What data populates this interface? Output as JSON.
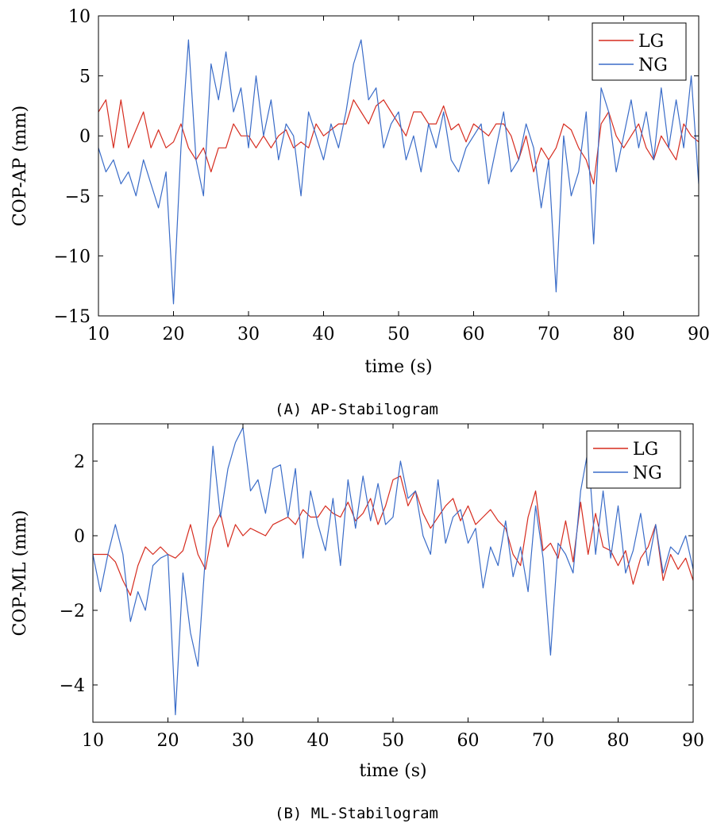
{
  "chart_data": [
    {
      "type": "line",
      "caption": "(A) AP-Stabilogram",
      "xlabel": "time (s)",
      "ylabel": "COP-AP (mm)",
      "xlim": [
        10,
        90
      ],
      "ylim": [
        -15,
        10
      ],
      "xticks": [
        10,
        20,
        30,
        40,
        50,
        60,
        70,
        80,
        90
      ],
      "yticks": [
        -15,
        -10,
        -5,
        0,
        5,
        10
      ],
      "grid": false,
      "legend_position": "top-right",
      "series": [
        {
          "name": "LG",
          "color": "#d62c1f",
          "x": [
            10,
            11,
            12,
            13,
            14,
            15,
            16,
            17,
            18,
            19,
            20,
            21,
            22,
            23,
            24,
            25,
            26,
            27,
            28,
            29,
            30,
            31,
            32,
            33,
            34,
            35,
            36,
            37,
            38,
            39,
            40,
            41,
            42,
            43,
            44,
            45,
            46,
            47,
            48,
            49,
            50,
            51,
            52,
            53,
            54,
            55,
            56,
            57,
            58,
            59,
            60,
            61,
            62,
            63,
            64,
            65,
            66,
            67,
            68,
            69,
            70,
            71,
            72,
            73,
            74,
            75,
            76,
            77,
            78,
            79,
            80,
            81,
            82,
            83,
            84,
            85,
            86,
            87,
            88,
            89,
            90
          ],
          "y": [
            2,
            3,
            -1,
            3,
            -1,
            0.5,
            2,
            -1,
            0.5,
            -1,
            -0.5,
            1,
            -1,
            -2,
            -1,
            -3,
            -1,
            -1,
            1,
            0,
            0,
            -1,
            0,
            -1,
            0,
            0.5,
            -1,
            -0.5,
            -1,
            1,
            0,
            0.5,
            1,
            1,
            3,
            2,
            1,
            2.5,
            3,
            2,
            1,
            0,
            2,
            2,
            1,
            1,
            2.5,
            0.5,
            1,
            -0.5,
            1,
            0.5,
            0,
            1,
            1,
            0,
            -2,
            0,
            -3,
            -1,
            -2,
            -1,
            1,
            0.5,
            -1,
            -2,
            -4,
            1,
            2,
            0,
            -1,
            0,
            1,
            -1,
            -2,
            0,
            -1,
            -2,
            1,
            0,
            -0.5
          ]
        },
        {
          "name": "NG",
          "color": "#3a6cc8",
          "x": [
            10,
            11,
            12,
            13,
            14,
            15,
            16,
            17,
            18,
            19,
            20,
            21,
            22,
            23,
            24,
            25,
            26,
            27,
            28,
            29,
            30,
            31,
            32,
            33,
            34,
            35,
            36,
            37,
            38,
            39,
            40,
            41,
            42,
            43,
            44,
            45,
            46,
            47,
            48,
            49,
            50,
            51,
            52,
            53,
            54,
            55,
            56,
            57,
            58,
            59,
            60,
            61,
            62,
            63,
            64,
            65,
            66,
            67,
            68,
            69,
            70,
            71,
            72,
            73,
            74,
            75,
            76,
            77,
            78,
            79,
            80,
            81,
            82,
            83,
            84,
            85,
            86,
            87,
            88,
            89,
            90
          ],
          "y": [
            -1,
            -3,
            -2,
            -4,
            -3,
            -5,
            -2,
            -4,
            -6,
            -3,
            -14,
            -1,
            8,
            -2,
            -5,
            6,
            3,
            7,
            2,
            4,
            -1,
            5,
            0,
            3,
            -2,
            1,
            0,
            -5,
            2,
            0,
            -2,
            1,
            -1,
            2,
            6,
            8,
            3,
            4,
            -1,
            1,
            2,
            -2,
            0,
            -3,
            1,
            -1,
            2,
            -2,
            -3,
            -1,
            0,
            1,
            -4,
            -1,
            2,
            -3,
            -2,
            1,
            -1,
            -6,
            -2,
            -13,
            0,
            -5,
            -3,
            2,
            -9,
            4,
            2,
            -3,
            0,
            3,
            -1,
            2,
            -2,
            4,
            -1,
            3,
            -1,
            5,
            -4
          ]
        }
      ]
    },
    {
      "type": "line",
      "caption": "(B) ML-Stabilogram",
      "xlabel": "time (s)",
      "ylabel": "COP-ML (mm)",
      "xlim": [
        10,
        90
      ],
      "ylim": [
        -5,
        3
      ],
      "xticks": [
        10,
        20,
        30,
        40,
        50,
        60,
        70,
        80,
        90
      ],
      "yticks": [
        -4,
        -2,
        0,
        2
      ],
      "grid": false,
      "legend_position": "top-right",
      "series": [
        {
          "name": "LG",
          "color": "#d62c1f",
          "x": [
            10,
            11,
            12,
            13,
            14,
            15,
            16,
            17,
            18,
            19,
            20,
            21,
            22,
            23,
            24,
            25,
            26,
            27,
            28,
            29,
            30,
            31,
            32,
            33,
            34,
            35,
            36,
            37,
            38,
            39,
            40,
            41,
            42,
            43,
            44,
            45,
            46,
            47,
            48,
            49,
            50,
            51,
            52,
            53,
            54,
            55,
            56,
            57,
            58,
            59,
            60,
            61,
            62,
            63,
            64,
            65,
            66,
            67,
            68,
            69,
            70,
            71,
            72,
            73,
            74,
            75,
            76,
            77,
            78,
            79,
            80,
            81,
            82,
            83,
            84,
            85,
            86,
            87,
            88,
            89,
            90
          ],
          "y": [
            -0.5,
            -0.5,
            -0.5,
            -0.7,
            -1.2,
            -1.6,
            -0.8,
            -0.3,
            -0.5,
            -0.3,
            -0.5,
            -0.6,
            -0.4,
            0.3,
            -0.5,
            -0.9,
            0.2,
            0.6,
            -0.3,
            0.3,
            0,
            0.2,
            0.1,
            0,
            0.3,
            0.4,
            0.5,
            0.3,
            0.7,
            0.5,
            0.5,
            0.8,
            0.6,
            0.5,
            0.9,
            0.4,
            0.6,
            1,
            0.3,
            0.8,
            1.5,
            1.6,
            0.8,
            1.2,
            0.6,
            0.2,
            0.5,
            0.8,
            1,
            0.4,
            0.8,
            0.3,
            0.5,
            0.7,
            0.4,
            0.2,
            -0.5,
            -0.8,
            0.5,
            1.2,
            -0.4,
            -0.2,
            -0.6,
            0.4,
            -0.7,
            0.9,
            -0.5,
            0.6,
            -0.3,
            -0.4,
            -0.8,
            -0.4,
            -1.3,
            -0.6,
            -0.3,
            0.3,
            -1.2,
            -0.5,
            -0.9,
            -0.6,
            -1.2
          ]
        },
        {
          "name": "NG",
          "color": "#3a6cc8",
          "x": [
            10,
            11,
            12,
            13,
            14,
            15,
            16,
            17,
            18,
            19,
            20,
            21,
            22,
            23,
            24,
            25,
            26,
            27,
            28,
            29,
            30,
            31,
            32,
            33,
            34,
            35,
            36,
            37,
            38,
            39,
            40,
            41,
            42,
            43,
            44,
            45,
            46,
            47,
            48,
            49,
            50,
            51,
            52,
            53,
            54,
            55,
            56,
            57,
            58,
            59,
            60,
            61,
            62,
            63,
            64,
            65,
            66,
            67,
            68,
            69,
            70,
            71,
            72,
            73,
            74,
            75,
            76,
            77,
            78,
            79,
            80,
            81,
            82,
            83,
            84,
            85,
            86,
            87,
            88,
            89,
            90
          ],
          "y": [
            -0.5,
            -1.5,
            -0.5,
            0.3,
            -0.5,
            -2.3,
            -1.5,
            -2,
            -0.8,
            -0.6,
            -0.5,
            -4.8,
            -1,
            -2.6,
            -3.5,
            -0.5,
            2.4,
            0.5,
            1.8,
            2.5,
            2.9,
            1.2,
            1.5,
            0.6,
            1.8,
            1.9,
            0.5,
            1.8,
            -0.6,
            1.2,
            0.3,
            -0.4,
            1,
            -0.8,
            1.5,
            0.2,
            1.6,
            0.4,
            1.4,
            0.3,
            0.5,
            2,
            1,
            1.2,
            0,
            -0.5,
            1.5,
            -0.2,
            0.5,
            0.7,
            -0.2,
            0.2,
            -1.4,
            -0.3,
            -0.8,
            0.4,
            -1.1,
            -0.3,
            -1.5,
            0.8,
            -0.6,
            -3.2,
            -0.2,
            -0.5,
            -1,
            1.2,
            2.3,
            -0.5,
            1.2,
            -0.6,
            0.8,
            -1,
            -0.4,
            0.6,
            -0.8,
            0.3,
            -1,
            -0.3,
            -0.5,
            0,
            -0.9
          ]
        }
      ]
    }
  ]
}
